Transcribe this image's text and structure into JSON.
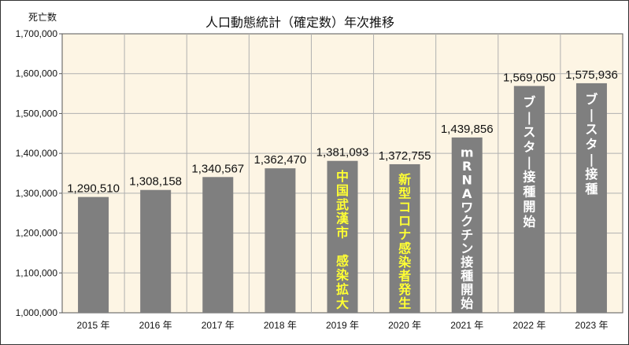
{
  "chart_data": {
    "type": "bar",
    "title": "人口動態統計（確定数）年次推移",
    "ylabel": "死亡数",
    "xlabel": "",
    "ylim": [
      1000000,
      1700000
    ],
    "yticks": [
      1000000,
      1100000,
      1200000,
      1300000,
      1400000,
      1500000,
      1600000,
      1700000
    ],
    "ytick_labels": [
      "1,000,000",
      "1,100,000",
      "1,200,000",
      "1,300,000",
      "1,400,000",
      "1,500,000",
      "1,600,000",
      "1,700,000"
    ],
    "categories": [
      "2015 年",
      "2016 年",
      "2017 年",
      "2018 年",
      "2019 年",
      "2020 年",
      "2021 年",
      "2022 年",
      "2023 年"
    ],
    "values": [
      1290510,
      1308158,
      1340567,
      1362470,
      1381093,
      1372755,
      1439856,
      1569050,
      1575936
    ],
    "value_labels": [
      "1,290,510",
      "1,308,158",
      "1,340,567",
      "1,362,470",
      "1,381,093",
      "1,372,755",
      "1,439,856",
      "1,569,050",
      "1,575,936"
    ],
    "annotations": [
      {
        "index": 4,
        "text": "中国武漢市 感染拡大",
        "color": "#ffff33"
      },
      {
        "index": 5,
        "text": "新型コロナ感染者発生",
        "color": "#ffff33"
      },
      {
        "index": 6,
        "text": "mRNAワクチン接種開始",
        "color": "#ffffff"
      },
      {
        "index": 7,
        "text": "ブースター接種開始",
        "color": "#ffffff"
      },
      {
        "index": 8,
        "text": "ブースター接種",
        "color": "#ffffff"
      }
    ],
    "colors": {
      "bar": "#7f7f7f",
      "plot_bg": "#fdf5e4",
      "grid": "#b0b0b0"
    },
    "grid": true
  }
}
